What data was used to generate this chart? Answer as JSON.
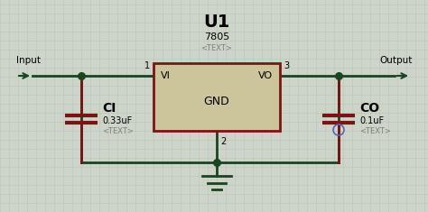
{
  "bg_color": "#cdd5c8",
  "grid_color": "#bcc4b7",
  "wire_dark": "#1a4520",
  "wire_red": "#7a1515",
  "ic_fill": "#ccc49a",
  "ic_border": "#7a1515",
  "ic_label": "U1",
  "ic_sublabel": "7805",
  "ic_subtext": "<TEXT>",
  "vi_label": "VI",
  "vo_label": "VO",
  "gnd_label": "GND",
  "ci_label": "CI",
  "ci_value": "0.33uF",
  "ci_text": "<TEXT>",
  "co_label": "CO",
  "co_value": "0.1uF",
  "co_text": "<TEXT>",
  "input_label": "Input",
  "output_label": "Output",
  "circle_color": "#5566bb"
}
